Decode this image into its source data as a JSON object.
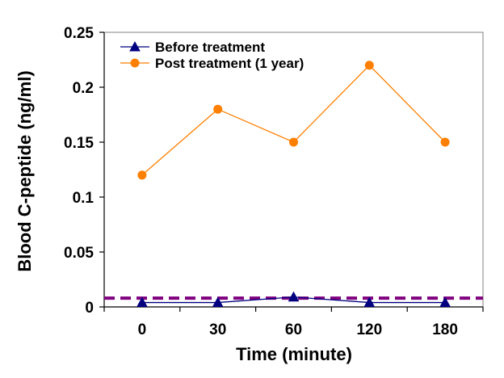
{
  "chart_data": {
    "type": "line",
    "categories": [
      "0",
      "30",
      "60",
      "120",
      "180"
    ],
    "series": [
      {
        "name": "Before treatment",
        "values": [
          0.004,
          0.004,
          0.009,
          0.004,
          0.004
        ],
        "color": "#000080",
        "marker": "triangle"
      },
      {
        "name": "Post treatment (1 year)",
        "values": [
          0.12,
          0.18,
          0.15,
          0.22,
          0.15
        ],
        "color": "#ff7f00",
        "marker": "circle"
      }
    ],
    "reference_line": {
      "value": 0.008,
      "color": "#800080",
      "style": "dashed"
    },
    "xlabel": "Time (minute)",
    "ylabel": "Blood C-peptide (ng/ml)",
    "ylim": [
      0,
      0.25
    ],
    "yticks": [
      "0",
      "0.05",
      "0.1",
      "0.15",
      "0.2",
      "0.25"
    ],
    "ytick_values": [
      0,
      0.05,
      0.1,
      0.15,
      0.2,
      0.25
    ],
    "grid": false,
    "legend_position": "top-left"
  }
}
